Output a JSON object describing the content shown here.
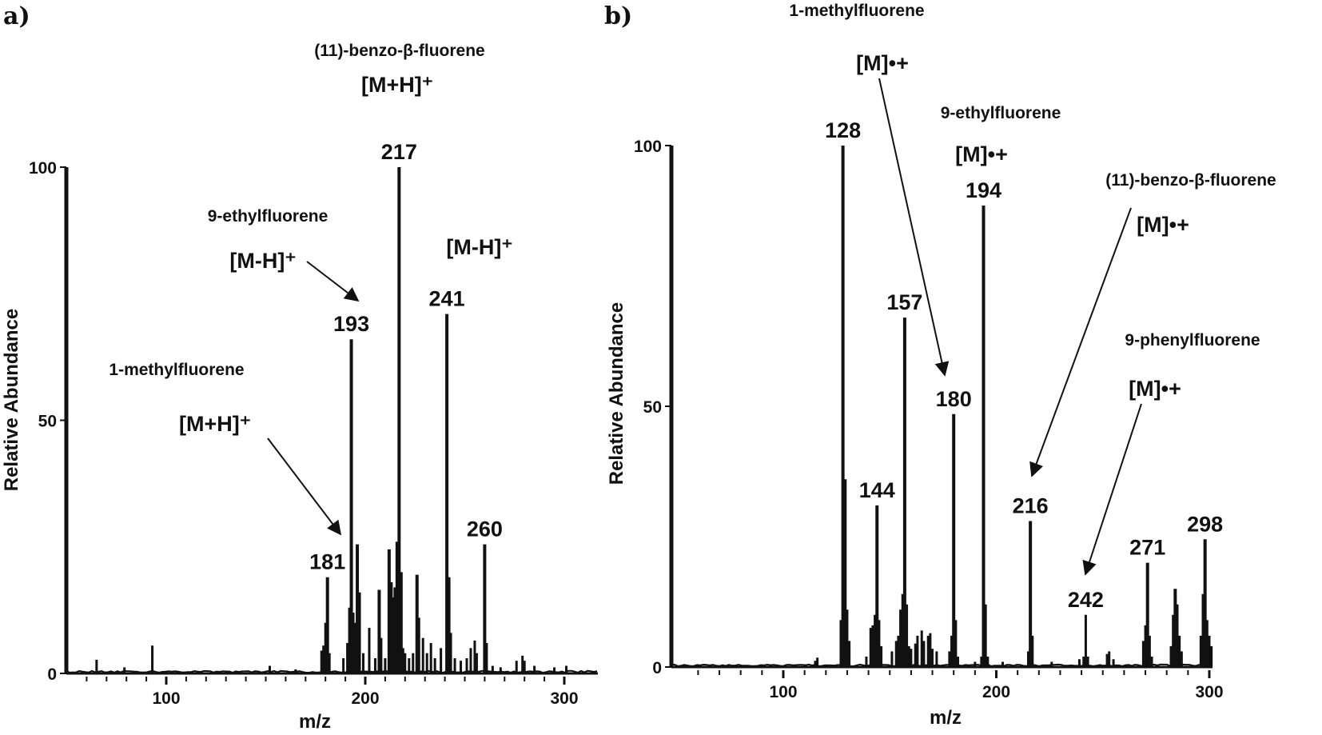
{
  "chart_data": [
    {
      "panel_letter": "a)",
      "type": "bar",
      "xlabel": "m/z",
      "ylabel": "Relative Abundance",
      "xlim": [
        50,
        302
      ],
      "ylim": [
        0,
        100
      ],
      "x_ticks": [
        100,
        200,
        300
      ],
      "y_ticks": [
        0,
        50,
        100
      ],
      "peaks": [
        {
          "x": 65,
          "y": 2.7
        },
        {
          "x": 79,
          "y": 1.2
        },
        {
          "x": 93,
          "y": 5.5
        },
        {
          "x": 152,
          "y": 1.5
        },
        {
          "x": 165,
          "y": 0.8
        },
        {
          "x": 178,
          "y": 4.5
        },
        {
          "x": 179,
          "y": 5.5
        },
        {
          "x": 180,
          "y": 10
        },
        {
          "x": 181,
          "y": 19,
          "label": "181"
        },
        {
          "x": 182,
          "y": 4
        },
        {
          "x": 189,
          "y": 3
        },
        {
          "x": 191,
          "y": 6
        },
        {
          "x": 192,
          "y": 13
        },
        {
          "x": 193,
          "y": 66,
          "label": "193"
        },
        {
          "x": 194,
          "y": 12
        },
        {
          "x": 195,
          "y": 10
        },
        {
          "x": 196,
          "y": 25.5
        },
        {
          "x": 197,
          "y": 16
        },
        {
          "x": 199,
          "y": 4
        },
        {
          "x": 202,
          "y": 9
        },
        {
          "x": 205,
          "y": 3
        },
        {
          "x": 207,
          "y": 16.5
        },
        {
          "x": 208,
          "y": 7
        },
        {
          "x": 210,
          "y": 3
        },
        {
          "x": 212,
          "y": 24.5
        },
        {
          "x": 213,
          "y": 18
        },
        {
          "x": 214,
          "y": 15
        },
        {
          "x": 215,
          "y": 17
        },
        {
          "x": 216,
          "y": 26
        },
        {
          "x": 217,
          "y": 100,
          "label": "217"
        },
        {
          "x": 218,
          "y": 20
        },
        {
          "x": 219,
          "y": 5
        },
        {
          "x": 220,
          "y": 4
        },
        {
          "x": 222,
          "y": 3
        },
        {
          "x": 224,
          "y": 4
        },
        {
          "x": 226,
          "y": 19.5
        },
        {
          "x": 227,
          "y": 11
        },
        {
          "x": 229,
          "y": 7
        },
        {
          "x": 231,
          "y": 4
        },
        {
          "x": 233,
          "y": 6
        },
        {
          "x": 235,
          "y": 3
        },
        {
          "x": 238,
          "y": 5
        },
        {
          "x": 241,
          "y": 71,
          "label": "241"
        },
        {
          "x": 242,
          "y": 19
        },
        {
          "x": 243,
          "y": 8
        },
        {
          "x": 245,
          "y": 3
        },
        {
          "x": 248,
          "y": 2.5
        },
        {
          "x": 251,
          "y": 3
        },
        {
          "x": 253,
          "y": 5
        },
        {
          "x": 255,
          "y": 6.5
        },
        {
          "x": 256,
          "y": 4
        },
        {
          "x": 260,
          "y": 25.5,
          "label": "260"
        },
        {
          "x": 261,
          "y": 6
        },
        {
          "x": 264,
          "y": 1.5
        },
        {
          "x": 268,
          "y": 1.2
        },
        {
          "x": 276,
          "y": 2.5
        },
        {
          "x": 279,
          "y": 3.5
        },
        {
          "x": 280,
          "y": 2.5
        },
        {
          "x": 285,
          "y": 1.5
        },
        {
          "x": 295,
          "y": 1.2
        },
        {
          "x": 301,
          "y": 1.5
        }
      ],
      "annotations": [
        {
          "name": "(11)-benzo-β-fluorene",
          "ion": "[M+H]⁺"
        },
        {
          "name": "9-ethylfluorene",
          "ion": "[M-H]⁺"
        },
        {
          "name": "",
          "ion": "[M-H]⁺"
        },
        {
          "name": "1-methylfluorene",
          "ion": "[M+H]⁺"
        }
      ]
    },
    {
      "panel_letter": "b)",
      "type": "bar",
      "xlabel": "m/z",
      "ylabel": "Relative Abundance",
      "xlim": [
        50,
        302
      ],
      "ylim": [
        0,
        100
      ],
      "x_ticks": [
        100,
        200,
        300
      ],
      "y_ticks": [
        0,
        50,
        100
      ],
      "peaks": [
        {
          "x": 115,
          "y": 1.2
        },
        {
          "x": 116,
          "y": 1.8
        },
        {
          "x": 127,
          "y": 9
        },
        {
          "x": 128,
          "y": 100,
          "label": "128"
        },
        {
          "x": 129,
          "y": 36
        },
        {
          "x": 130,
          "y": 11
        },
        {
          "x": 131,
          "y": 5
        },
        {
          "x": 139,
          "y": 2
        },
        {
          "x": 141,
          "y": 7.5
        },
        {
          "x": 142,
          "y": 8
        },
        {
          "x": 143,
          "y": 10
        },
        {
          "x": 144,
          "y": 31,
          "label": "144"
        },
        {
          "x": 145,
          "y": 9
        },
        {
          "x": 146,
          "y": 4
        },
        {
          "x": 151,
          "y": 3
        },
        {
          "x": 153,
          "y": 5
        },
        {
          "x": 154,
          "y": 6
        },
        {
          "x": 155,
          "y": 11
        },
        {
          "x": 156,
          "y": 14
        },
        {
          "x": 157,
          "y": 67,
          "label": "157"
        },
        {
          "x": 158,
          "y": 12
        },
        {
          "x": 159,
          "y": 4
        },
        {
          "x": 160,
          "y": 3.5
        },
        {
          "x": 162,
          "y": 4.5
        },
        {
          "x": 163,
          "y": 6
        },
        {
          "x": 165,
          "y": 7
        },
        {
          "x": 166,
          "y": 5
        },
        {
          "x": 168,
          "y": 6
        },
        {
          "x": 169,
          "y": 6.5
        },
        {
          "x": 170,
          "y": 3.5
        },
        {
          "x": 172,
          "y": 3
        },
        {
          "x": 178,
          "y": 3
        },
        {
          "x": 179,
          "y": 6
        },
        {
          "x": 180,
          "y": 48.5,
          "label": "180"
        },
        {
          "x": 181,
          "y": 9
        },
        {
          "x": 182,
          "y": 2
        },
        {
          "x": 190,
          "y": 1
        },
        {
          "x": 193,
          "y": 2
        },
        {
          "x": 194,
          "y": 88.5,
          "label": "194"
        },
        {
          "x": 195,
          "y": 12
        },
        {
          "x": 196,
          "y": 2
        },
        {
          "x": 203,
          "y": 1
        },
        {
          "x": 215,
          "y": 3
        },
        {
          "x": 216,
          "y": 28,
          "label": "216"
        },
        {
          "x": 217,
          "y": 6
        },
        {
          "x": 226,
          "y": 1
        },
        {
          "x": 239,
          "y": 1.5
        },
        {
          "x": 241,
          "y": 2
        },
        {
          "x": 242,
          "y": 10,
          "label": "242"
        },
        {
          "x": 243,
          "y": 2
        },
        {
          "x": 252,
          "y": 2.5
        },
        {
          "x": 253,
          "y": 3
        },
        {
          "x": 255,
          "y": 1.5
        },
        {
          "x": 269,
          "y": 5
        },
        {
          "x": 270,
          "y": 8
        },
        {
          "x": 271,
          "y": 20,
          "label": "271"
        },
        {
          "x": 272,
          "y": 6
        },
        {
          "x": 273,
          "y": 2
        },
        {
          "x": 282,
          "y": 4
        },
        {
          "x": 283,
          "y": 10
        },
        {
          "x": 284,
          "y": 15
        },
        {
          "x": 285,
          "y": 12
        },
        {
          "x": 286,
          "y": 6
        },
        {
          "x": 287,
          "y": 3
        },
        {
          "x": 296,
          "y": 6
        },
        {
          "x": 297,
          "y": 14
        },
        {
          "x": 298,
          "y": 24.5,
          "label": "298"
        },
        {
          "x": 299,
          "y": 9
        },
        {
          "x": 300,
          "y": 6
        },
        {
          "x": 301,
          "y": 4
        }
      ],
      "annotations": [
        {
          "name": "1-methylfluorene",
          "ion": "[M]•+"
        },
        {
          "name": "9-ethylfluorene",
          "ion": "[M]•+"
        },
        {
          "name": "(11)-benzo-β-fluorene",
          "ion": "[M]•+"
        },
        {
          "name": "9-phenylfluorene",
          "ion": "[M]•+"
        }
      ]
    }
  ]
}
